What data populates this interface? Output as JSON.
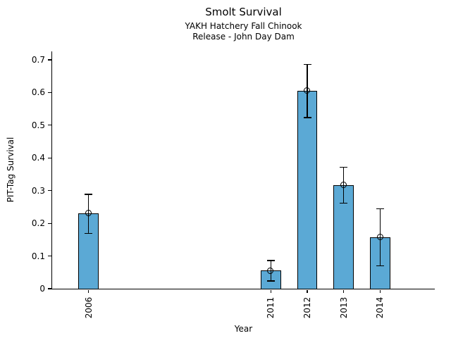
{
  "chart_data": {
    "type": "bar",
    "title": "Smolt Survival",
    "subtitle_lines": [
      "YAKH Hatchery Fall Chinook",
      "Release - John Day Dam"
    ],
    "xlabel": "Year",
    "ylabel": "PIT-Tag Survival",
    "categories": [
      "2006",
      "2011",
      "2012",
      "2013",
      "2014"
    ],
    "x_numeric": [
      2006,
      2011,
      2012,
      2013,
      2014
    ],
    "series": [
      {
        "name": "PIT-Tag Survival",
        "values": [
          0.23,
          0.055,
          0.605,
          0.317,
          0.157
        ],
        "error_low": [
          0.169,
          0.024,
          0.523,
          0.262,
          0.07
        ],
        "error_high": [
          0.289,
          0.086,
          0.686,
          0.372,
          0.245
        ]
      }
    ],
    "ytick_labels": [
      "0",
      "0.1",
      "0.2",
      "0.3",
      "0.4",
      "0.5",
      "0.6",
      "0.7"
    ],
    "ytick_values": [
      0,
      0.1,
      0.2,
      0.3,
      0.4,
      0.5,
      0.6,
      0.7
    ],
    "ylim": [
      0,
      0.726
    ],
    "x_range": [
      2005,
      2015.5
    ],
    "bar_width_years": 0.55,
    "grid": false,
    "legend": "none",
    "styles": {
      "bar_fill": "#5BA9D5",
      "bar_edge": "#000000",
      "errorbar_color": "#000000",
      "marker": "open-circle",
      "background": "#FFFFFF",
      "text_color": "#000000"
    }
  }
}
